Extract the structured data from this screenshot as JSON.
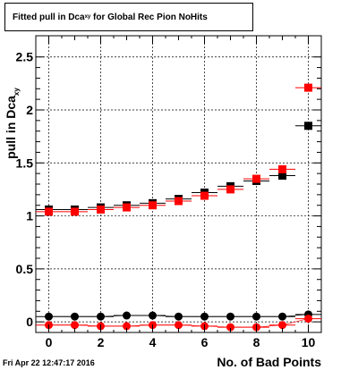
{
  "title": {
    "main": "Fitted pull in Dca",
    "sub": "xy",
    "rest": " for Global Rec Pion NoHits"
  },
  "timestamp": "Fri Apr 22 12:47:17 2016",
  "colors": {
    "black_series": "#000000",
    "red_series": "#ff0000",
    "grid": "#000000",
    "frame": "#000000"
  },
  "chart_data": {
    "type": "scatter",
    "xlabel": "No. of Bad Points",
    "ylabel": "pull in Dca",
    "ylabel_sub": "xy",
    "xlim": [
      -0.5,
      10.5
    ],
    "ylim": [
      -0.1,
      2.7
    ],
    "grid": true,
    "x_ticks": [
      0,
      2,
      4,
      6,
      8,
      10
    ],
    "x_tick_labels": [
      "0",
      "2",
      "4",
      "6",
      "8",
      "10"
    ],
    "y_ticks": [
      0,
      0.5,
      1,
      1.5,
      2,
      2.5
    ],
    "y_tick_labels": [
      "0",
      "0.5",
      "1",
      "1.5",
      "2",
      "2.5"
    ],
    "x": [
      0,
      1,
      2,
      3,
      4,
      5,
      6,
      7,
      8,
      9,
      10
    ],
    "series": [
      {
        "marker": "square",
        "color": "#000000",
        "values": [
          1.06,
          1.06,
          1.08,
          1.1,
          1.12,
          1.16,
          1.22,
          1.28,
          1.33,
          1.38,
          1.85
        ]
      },
      {
        "marker": "square",
        "color": "#ff0000",
        "values": [
          1.04,
          1.04,
          1.06,
          1.08,
          1.1,
          1.14,
          1.19,
          1.25,
          1.35,
          1.44,
          2.21
        ]
      },
      {
        "marker": "circle",
        "color": "#000000",
        "values": [
          0.05,
          0.05,
          0.05,
          0.06,
          0.06,
          0.05,
          0.05,
          0.05,
          0.05,
          0.05,
          0.07
        ]
      },
      {
        "marker": "circle",
        "color": "#ff0000",
        "values": [
          -0.03,
          -0.03,
          -0.04,
          -0.04,
          -0.03,
          -0.03,
          -0.04,
          -0.05,
          -0.05,
          -0.03,
          0.03
        ]
      }
    ]
  }
}
